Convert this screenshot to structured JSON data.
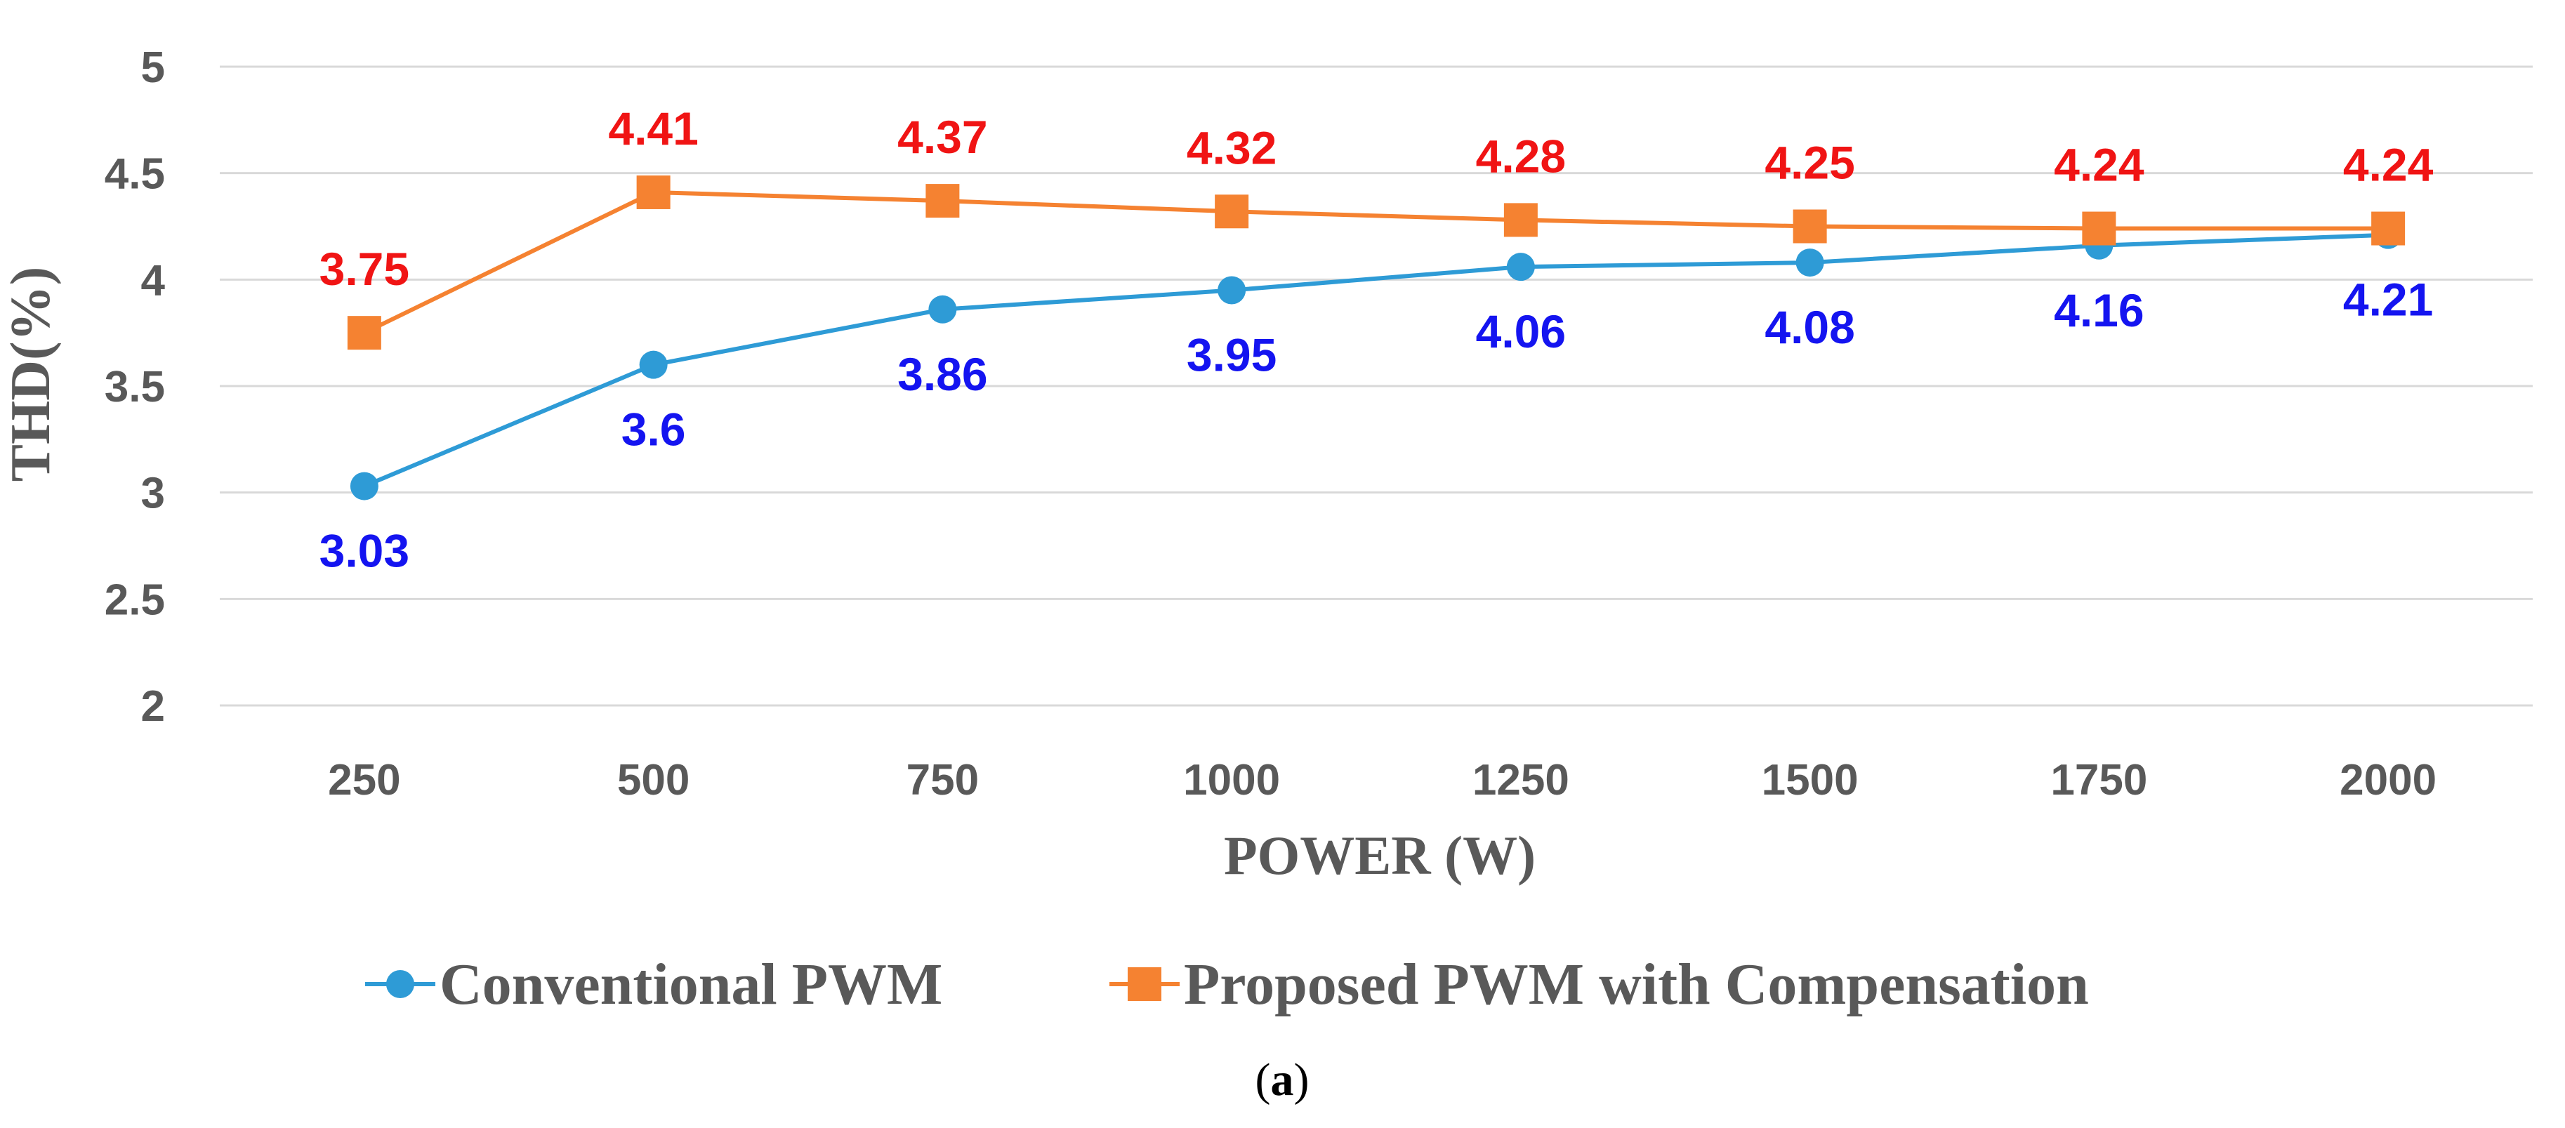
{
  "chart_data": {
    "type": "line",
    "title": "",
    "xlabel": "POWER (W)",
    "ylabel": "THD(%)",
    "categories": [
      "250",
      "500",
      "750",
      "1000",
      "1250",
      "1500",
      "1750",
      "2000"
    ],
    "ylim": [
      2,
      5
    ],
    "yticks": [
      "2",
      "2.5",
      "3",
      "3.5",
      "4",
      "4.5",
      "5"
    ],
    "grid": true,
    "legend_position": "bottom",
    "series": [
      {
        "name": "Conventional PWM",
        "marker": "circle",
        "color": "#2E9BD6",
        "label_color": "#1414F0",
        "values": [
          3.03,
          3.6,
          3.86,
          3.95,
          4.06,
          4.08,
          4.16,
          4.21
        ],
        "labels": [
          "3.03",
          "3.6",
          "3.86",
          "3.95",
          "4.06",
          "4.08",
          "4.16",
          "4.21"
        ],
        "label_position": "below"
      },
      {
        "name": "Proposed PWM with Compensation",
        "marker": "square",
        "color": "#F58231",
        "label_color": "#F01414",
        "values": [
          3.75,
          4.41,
          4.37,
          4.32,
          4.28,
          4.25,
          4.24,
          4.24
        ],
        "labels": [
          "3.75",
          "4.41",
          "4.37",
          "4.32",
          "4.28",
          "4.25",
          "4.24",
          "4.24"
        ],
        "label_position": "above"
      }
    ]
  },
  "caption": {
    "open": "(",
    "letter": "a",
    "close": ")"
  },
  "colors": {
    "gridline": "#D9D9D9",
    "axis_text": "#595959"
  }
}
